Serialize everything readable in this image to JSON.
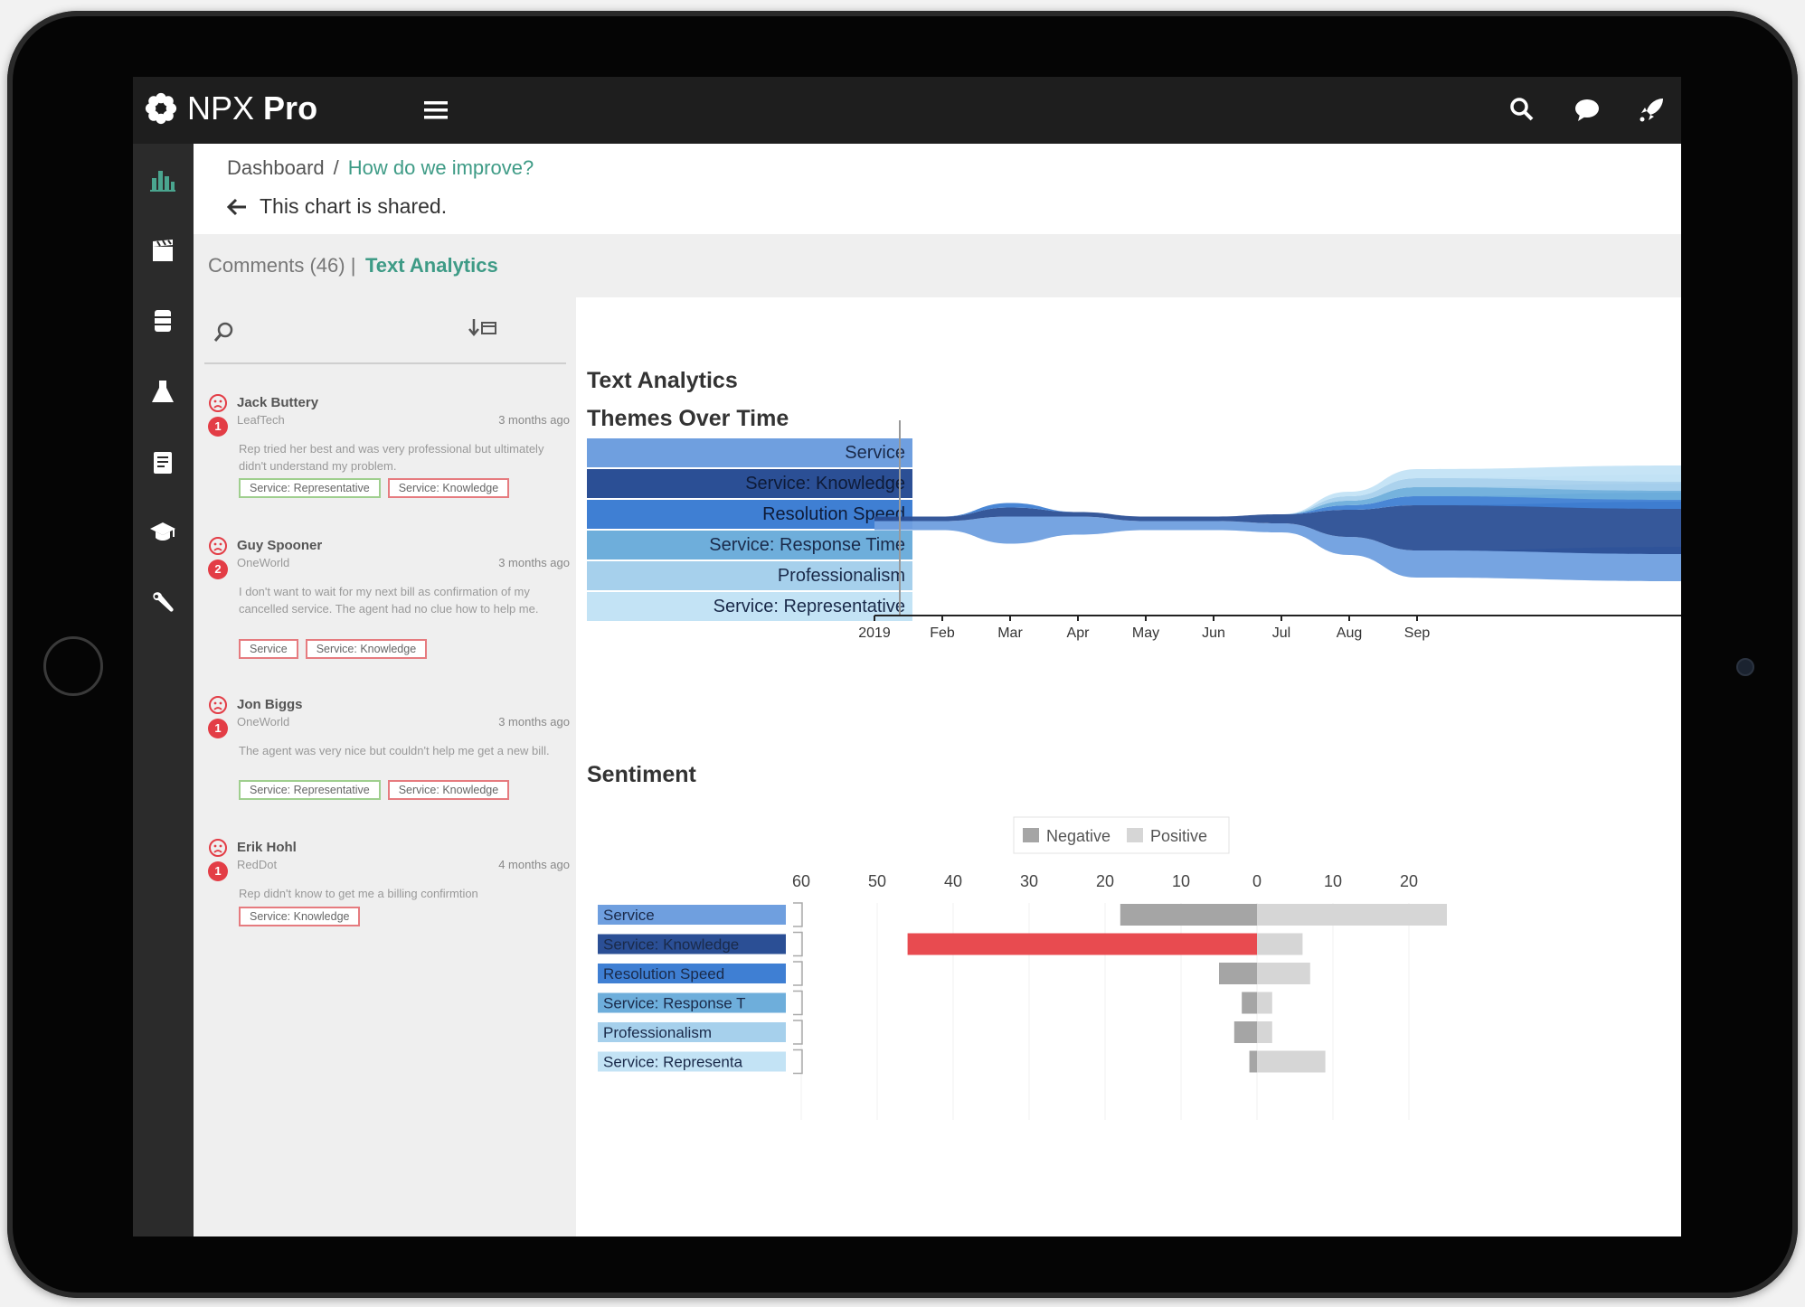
{
  "app": {
    "brand_light": "NPX",
    "brand_bold": "Pro"
  },
  "topbar": {
    "icons": [
      "menu-icon",
      "search-icon",
      "chat-icon",
      "rocket-icon"
    ]
  },
  "sidebar": {
    "items": [
      {
        "icon": "bar-chart-icon",
        "active": true
      },
      {
        "icon": "clapperboard-icon",
        "active": false
      },
      {
        "icon": "database-icon",
        "active": false
      },
      {
        "icon": "flask-icon",
        "active": false
      },
      {
        "icon": "document-icon",
        "active": false
      },
      {
        "icon": "graduation-cap-icon",
        "active": false
      },
      {
        "icon": "wrench-icon",
        "active": false
      }
    ]
  },
  "breadcrumb": {
    "root": "Dashboard",
    "sep": "/",
    "current": "How do we improve?"
  },
  "shared_text": "This chart is shared.",
  "tabs": {
    "comments": "Comments (46) |",
    "text_analytics": "Text Analytics"
  },
  "comments": [
    {
      "name": "Jack Buttery",
      "org": "LeafTech",
      "time": "3 months ago",
      "badge": "1",
      "text": "Rep tried her best and was very professional but ultimately didn't understand my problem.",
      "tags": [
        {
          "label": "Service: Representative",
          "color": "green"
        },
        {
          "label": "Service: Knowledge",
          "color": "red"
        }
      ]
    },
    {
      "name": "Guy Spooner",
      "org": "OneWorld",
      "time": "3 months ago",
      "badge": "2",
      "text": "I don't want to wait for my next bill as confirmation of my cancelled service. The agent had no clue how to help me.",
      "tags": [
        {
          "label": "Service",
          "color": "red"
        },
        {
          "label": "Service: Knowledge",
          "color": "red"
        }
      ]
    },
    {
      "name": "Jon Biggs",
      "org": "OneWorld",
      "time": "3 months ago",
      "badge": "1",
      "text": "The agent was very nice but couldn't help me get a new bill.",
      "tags": [
        {
          "label": "Service: Representative",
          "color": "green"
        },
        {
          "label": "Service: Knowledge",
          "color": "red"
        }
      ]
    },
    {
      "name": "Erik Hohl",
      "org": "RedDot",
      "time": "4 months ago",
      "badge": "1",
      "text": "Rep didn't know to get me a billing confirmtion",
      "tags": [
        {
          "label": "Service: Knowledge",
          "color": "red"
        }
      ]
    }
  ],
  "headings": {
    "text_analytics": "Text Analytics",
    "themes": "Themes Over Time",
    "sentiment": "Sentiment"
  },
  "themes_legend": [
    {
      "label": "Service",
      "color": "#6f9fdf"
    },
    {
      "label": "Service: Knowledge",
      "color": "#2b4f95"
    },
    {
      "label": "Resolution Speed",
      "color": "#3f7fd3"
    },
    {
      "label": "Service: Response Time",
      "color": "#6eaedb"
    },
    {
      "label": "Professionalism",
      "color": "#a6d0ec"
    },
    {
      "label": "Service: Representative",
      "color": "#c3e3f5"
    }
  ],
  "chart_data": [
    {
      "type": "area",
      "title": "Themes Over Time",
      "x": [
        "2019",
        "Feb",
        "Mar",
        "Apr",
        "May",
        "Jun",
        "Jul",
        "Aug",
        "Sep"
      ],
      "series": [
        {
          "name": "Service",
          "values": [
            1,
            1,
            3,
            2,
            1,
            1,
            1,
            2,
            3
          ]
        },
        {
          "name": "Service: Knowledge",
          "values": [
            0.5,
            0.5,
            1,
            0.5,
            0.5,
            0.5,
            1,
            3,
            5
          ]
        },
        {
          "name": "Resolution Speed",
          "values": [
            0,
            0,
            0.5,
            0,
            0,
            0,
            0,
            0.5,
            1
          ]
        },
        {
          "name": "Service: Response Time",
          "values": [
            0,
            0,
            0,
            0,
            0,
            0,
            0,
            0.5,
            1
          ]
        },
        {
          "name": "Professionalism",
          "values": [
            0,
            0,
            0,
            0,
            0,
            0,
            0,
            0.5,
            1
          ]
        },
        {
          "name": "Service: Representative",
          "values": [
            0,
            0,
            0,
            0,
            0,
            0,
            0,
            0.5,
            1
          ]
        }
      ]
    },
    {
      "type": "bar",
      "title": "Sentiment",
      "orientation": "horizontal-diverging",
      "categories": [
        "Service",
        "Service: Knowledge",
        "Resolution Speed",
        "Service: Response T",
        "Professionalism",
        "Service: Representa"
      ],
      "legend": [
        "Negative",
        "Positive"
      ],
      "legend_placement": "top-right",
      "x_ticks": [
        "60",
        "50",
        "40",
        "30",
        "20",
        "10",
        "0",
        "10",
        "20"
      ],
      "series": [
        {
          "name": "Negative",
          "values": [
            18,
            46,
            5,
            2,
            3,
            1
          ]
        },
        {
          "name": "Positive",
          "values": [
            25,
            6,
            7,
            2,
            2,
            9
          ]
        }
      ],
      "highlight": {
        "category": "Service: Knowledge",
        "series": "Negative",
        "color": "#e84b50"
      },
      "colors": {
        "Negative": "#a5a5a5",
        "Positive": "#d6d6d6"
      }
    }
  ]
}
